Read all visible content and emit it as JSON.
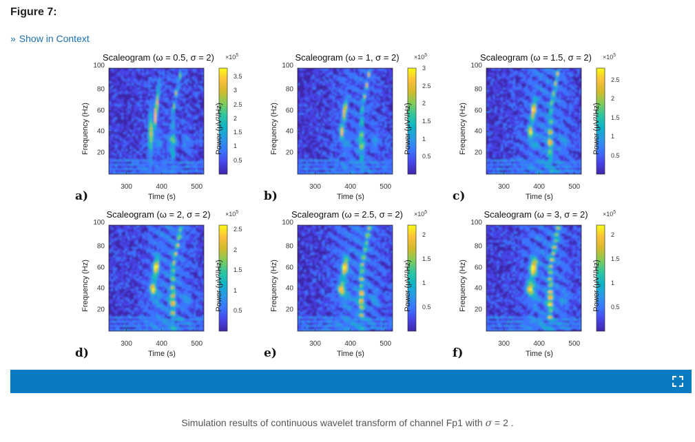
{
  "page": {
    "figure_title": "Figure 7:",
    "context_link": "Show in Context"
  },
  "panels": [
    {
      "letter": "a)",
      "title": "Scaleogram (ω = 0.5, σ = 2)",
      "exp_base": "×10",
      "exp_power": "5",
      "colorbar_ticks": [
        "3.5",
        "3",
        "2.5",
        "2",
        "1.5",
        "1",
        "0.5"
      ],
      "cbmax": 3.8,
      "omega": 0.5
    },
    {
      "letter": "b)",
      "title": "Scaleogram (ω = 1, σ = 2)",
      "exp_base": "×10",
      "exp_power": "5",
      "colorbar_ticks": [
        "3",
        "2.5",
        "2",
        "1.5",
        "1",
        "0.5"
      ],
      "cbmax": 3.0,
      "omega": 1
    },
    {
      "letter": "c)",
      "title": "Scaleogram (ω = 1.5, σ = 2)",
      "exp_base": "×10",
      "exp_power": "5",
      "colorbar_ticks": [
        "2.5",
        "2",
        "1.5",
        "1",
        "0.5"
      ],
      "cbmax": 2.8,
      "omega": 1.5
    },
    {
      "letter": "d)",
      "title": "Scaleogram (ω = 2, σ = 2)",
      "exp_base": "×10",
      "exp_power": "5",
      "colorbar_ticks": [
        "2.5",
        "2",
        "1.5",
        "1",
        "0.5"
      ],
      "cbmax": 2.6,
      "omega": 2
    },
    {
      "letter": "e)",
      "title": "Scaleogram (ω = 2.5, σ = 2)",
      "exp_base": "×10",
      "exp_power": "5",
      "colorbar_ticks": [
        "2",
        "1.5",
        "1",
        "0.5"
      ],
      "cbmax": 2.2,
      "omega": 2.5
    },
    {
      "letter": "f)",
      "title": "Scaleogram (ω = 3, σ = 2)",
      "exp_base": "×10",
      "exp_power": "5",
      "colorbar_ticks": [
        "2",
        "1.5",
        "1",
        "0.5"
      ],
      "cbmax": 2.2,
      "omega": 3
    }
  ],
  "axes": {
    "ylabel": "Frequency (Hz)",
    "xlabel": "Time (s)",
    "colorbar_label": "Power (μV²/Hz)",
    "yticks": [
      "100",
      "80",
      "60",
      "40",
      "20"
    ],
    "xticks": [
      "300",
      "400",
      "500"
    ],
    "ylim": [
      0,
      100
    ],
    "xlim": [
      250,
      520
    ]
  },
  "colormap": [
    "#3e26a8",
    "#4745e8",
    "#3a75fd",
    "#2998e6",
    "#0db4c7",
    "#2ec5a0",
    "#81cc59",
    "#d2bb2c",
    "#fdc03a",
    "#f9fb15"
  ],
  "caption": {
    "text": "Simulation results of continuous wavelet transform of channel Fp1 with",
    "symbol": "σ",
    "equals": "=",
    "value": "2",
    "period": "."
  },
  "expand_icon": "expand-icon"
}
